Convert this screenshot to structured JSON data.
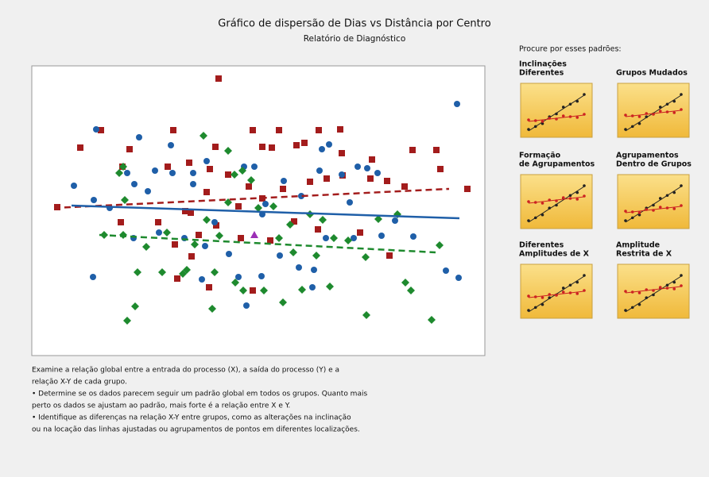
{
  "header": {
    "title": "Gráfico de dispersão de Dias vs Distância por Centro",
    "subtitle": "Relatório de Diagnóstico"
  },
  "chart_data": {
    "type": "scatter",
    "xlim": [
      0,
      570
    ],
    "ylim": [
      0,
      365
    ],
    "series": [
      {
        "color": "#a31c1c",
        "marker": "square",
        "x": [
          235,
          61,
          87,
          123,
          178,
          114,
          171,
          198,
          224,
          231,
          278,
          290,
          311,
          302,
          333,
          343,
          361,
          388,
          390,
          428,
          447,
          479,
          509,
          514,
          548,
          469,
          426,
          391,
          371,
          350,
          316,
          273,
          247,
          220,
          200,
          210,
          232,
          180,
          201,
          263,
          300,
          330,
          360,
          413,
          450,
          183,
          223,
          278,
          32,
          112,
          159,
          193,
          260,
          290
        ],
        "y": [
          349,
          262,
          284,
          260,
          284,
          238,
          238,
          243,
          235,
          263,
          284,
          263,
          284,
          262,
          265,
          268,
          284,
          285,
          255,
          247,
          220,
          259,
          259,
          235,
          210,
          213,
          223,
          227,
          223,
          219,
          210,
          213,
          228,
          206,
          180,
          152,
          164,
          140,
          125,
          148,
          145,
          169,
          159,
          155,
          126,
          97,
          86,
          82,
          187,
          168,
          168,
          182,
          188,
          198
        ],
        "fit": {
          "x": [
            28,
            525
          ],
          "y": [
            186,
            210
          ],
          "color": "#a31c1c",
          "dash": true
        }
      },
      {
        "color": "#1f5fa8",
        "marker": "circle",
        "x": [
          81,
          135,
          175,
          220,
          267,
          203,
          177,
          155,
          120,
          53,
          78,
          129,
          98,
          146,
          203,
          280,
          317,
          362,
          390,
          410,
          422,
          435,
          400,
          339,
          294,
          365,
          374,
          535,
          77,
          128,
          160,
          192,
          218,
          248,
          260,
          289,
          312,
          336,
          355,
          370,
          405,
          440,
          480,
          457,
          521,
          537,
          214,
          270,
          353,
          290,
          230
        ],
        "y": [
          285,
          275,
          265,
          245,
          238,
          230,
          230,
          233,
          230,
          214,
          196,
          216,
          186,
          207,
          216,
          238,
          220,
          233,
          228,
          238,
          236,
          230,
          193,
          201,
          191,
          260,
          266,
          317,
          99,
          148,
          155,
          148,
          138,
          128,
          99,
          100,
          126,
          111,
          108,
          148,
          148,
          151,
          150,
          170,
          107,
          98,
          96,
          63,
          86,
          178,
          168
        ],
        "fit": {
          "x": [
            50,
            538
          ],
          "y": [
            189,
            173
          ],
          "color": "#1f5fa8",
          "dash": false
        }
      },
      {
        "color": "#1e8a2e",
        "marker": "diamond",
        "x": [
          117,
          91,
          115,
          144,
          170,
          190,
          205,
          220,
          247,
          255,
          265,
          276,
          285,
          304,
          311,
          329,
          350,
          366,
          380,
          398,
          420,
          436,
          460,
          513,
          470,
          477,
          503,
          421,
          375,
          340,
          316,
          292,
          256,
          230,
          195,
          164,
          133,
          120,
          130,
          227,
          266,
          115,
          110,
          216,
          247,
          236,
          325,
          358
        ],
        "y": [
          196,
          152,
          152,
          137,
          155,
          103,
          140,
          171,
          193,
          228,
          233,
          221,
          186,
          188,
          148,
          130,
          178,
          171,
          148,
          145,
          124,
          172,
          178,
          139,
          92,
          82,
          45,
          51,
          87,
          83,
          67,
          82,
          92,
          105,
          108,
          105,
          105,
          44,
          62,
          59,
          82,
          238,
          230,
          277,
          258,
          151,
          165,
          126
        ],
        "fit": {
          "x": [
            85,
            508
          ],
          "y": [
            152,
            130
          ],
          "color": "#1e8a2e",
          "dash": true
        }
      }
    ],
    "center": {
      "x": 280,
      "y": 152,
      "color": "#9b2fb5"
    }
  },
  "panel": {
    "heading": "Procure por esses padrões:",
    "patterns": [
      [
        "Inclinações",
        "Diferentes"
      ],
      [
        "Grupos Mudados"
      ],
      [
        "Formação",
        "de Agrupamentos"
      ],
      [
        "Agrupamentos",
        "Dentro de Grupos"
      ],
      [
        "Diferentes",
        "Amplitudes de X"
      ],
      [
        "Amplitude",
        "Restrita de X"
      ]
    ]
  },
  "notes": [
    "Examine a relação global entre a entrada do processo (X), a saída do processo (Y) e a",
    "relação X-Y de cada grupo.",
    "•  Determine se os dados parecem seguir um padrão global em todos os grupos. Quanto mais",
    "perto os dados se ajustam ao padrão, mais forte é a relação entre X e Y.",
    "•  Identifique as diferenças na relação X-Y entre grupos, como as alterações na inclinação",
    "ou na locação das linhas ajustadas ou agrupamentos de pontos em diferentes localizações."
  ]
}
